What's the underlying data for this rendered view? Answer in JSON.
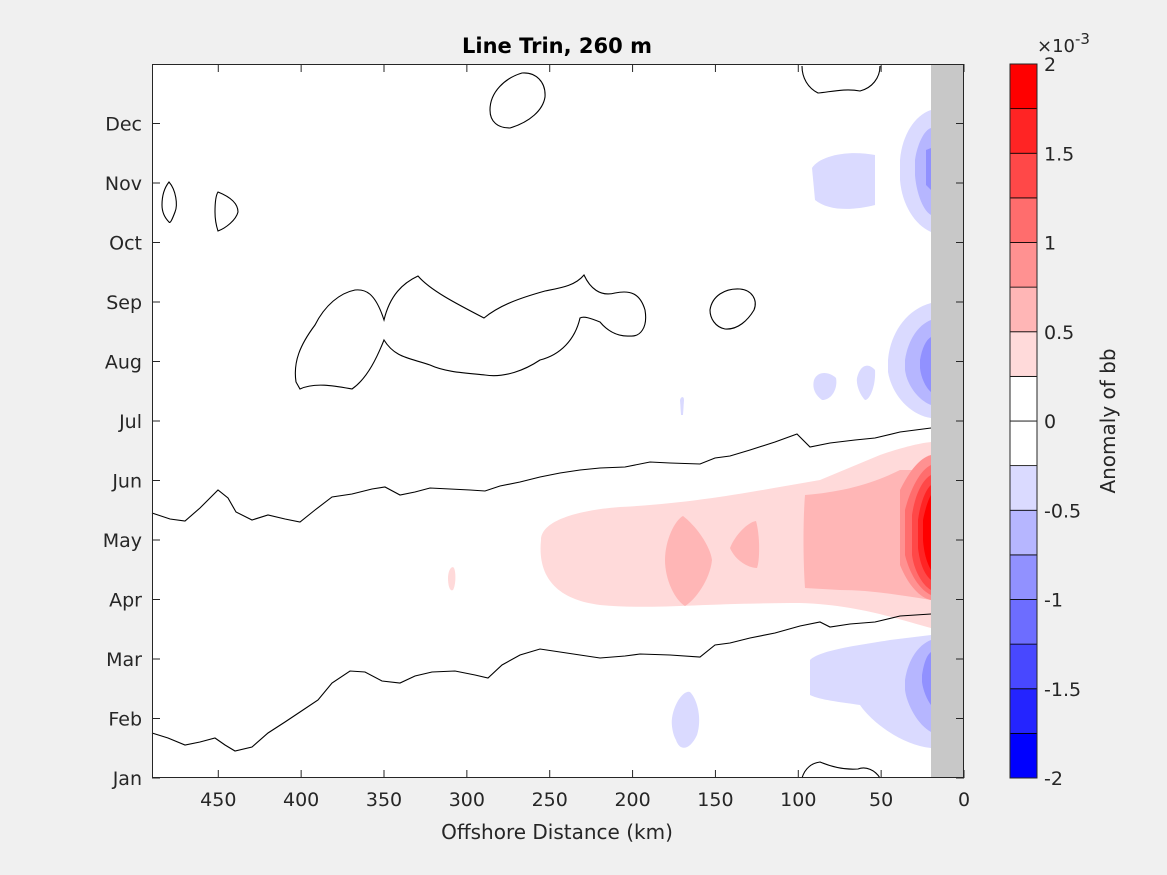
{
  "chart_data": {
    "type": "heatmap",
    "subtype": "filled-contour",
    "title": "Line Trin, 260 m",
    "xlabel": "Offshore Distance (km)",
    "x_direction": "reversed",
    "xlim": [
      0,
      490
    ],
    "xticks": [
      "450",
      "400",
      "350",
      "300",
      "250",
      "200",
      "150",
      "100",
      "50",
      "0"
    ],
    "ylim": [
      0,
      12
    ],
    "yticks": [
      "Jan",
      "Feb",
      "Mar",
      "Apr",
      "May",
      "Jun",
      "Jul",
      "Aug",
      "Sep",
      "Oct",
      "Nov",
      "Dec"
    ],
    "colorbar": {
      "label": "Anomaly of bb",
      "exponent": "×10",
      "exponent_power": "-3",
      "limits": [
        -2,
        2
      ],
      "levels": [
        -2,
        -1.75,
        -1.5,
        -1.25,
        -1,
        -0.75,
        -0.5,
        -0.25,
        0,
        0.25,
        0.5,
        0.75,
        1,
        1.25,
        1.5,
        1.75,
        2
      ],
      "colors": [
        "#0000ff",
        "#2424ff",
        "#4848ff",
        "#6d6dff",
        "#9191ff",
        "#b6b6ff",
        "#dadaff",
        "#ffffff",
        "#ffffff",
        "#ffdada",
        "#ffb6b6",
        "#ff9191",
        "#ff6d6d",
        "#ff4848",
        "#ff2424",
        "#ff0000"
      ],
      "tick_labels": [
        "2",
        "1.5",
        "1",
        "0.5",
        "0",
        "-0.5",
        "-1",
        "-1.5",
        "-2"
      ]
    },
    "land_mask": {
      "color": "#c8c8c8",
      "x_range": [
        0,
        20
      ]
    },
    "zero_contour_color": "#000000"
  }
}
